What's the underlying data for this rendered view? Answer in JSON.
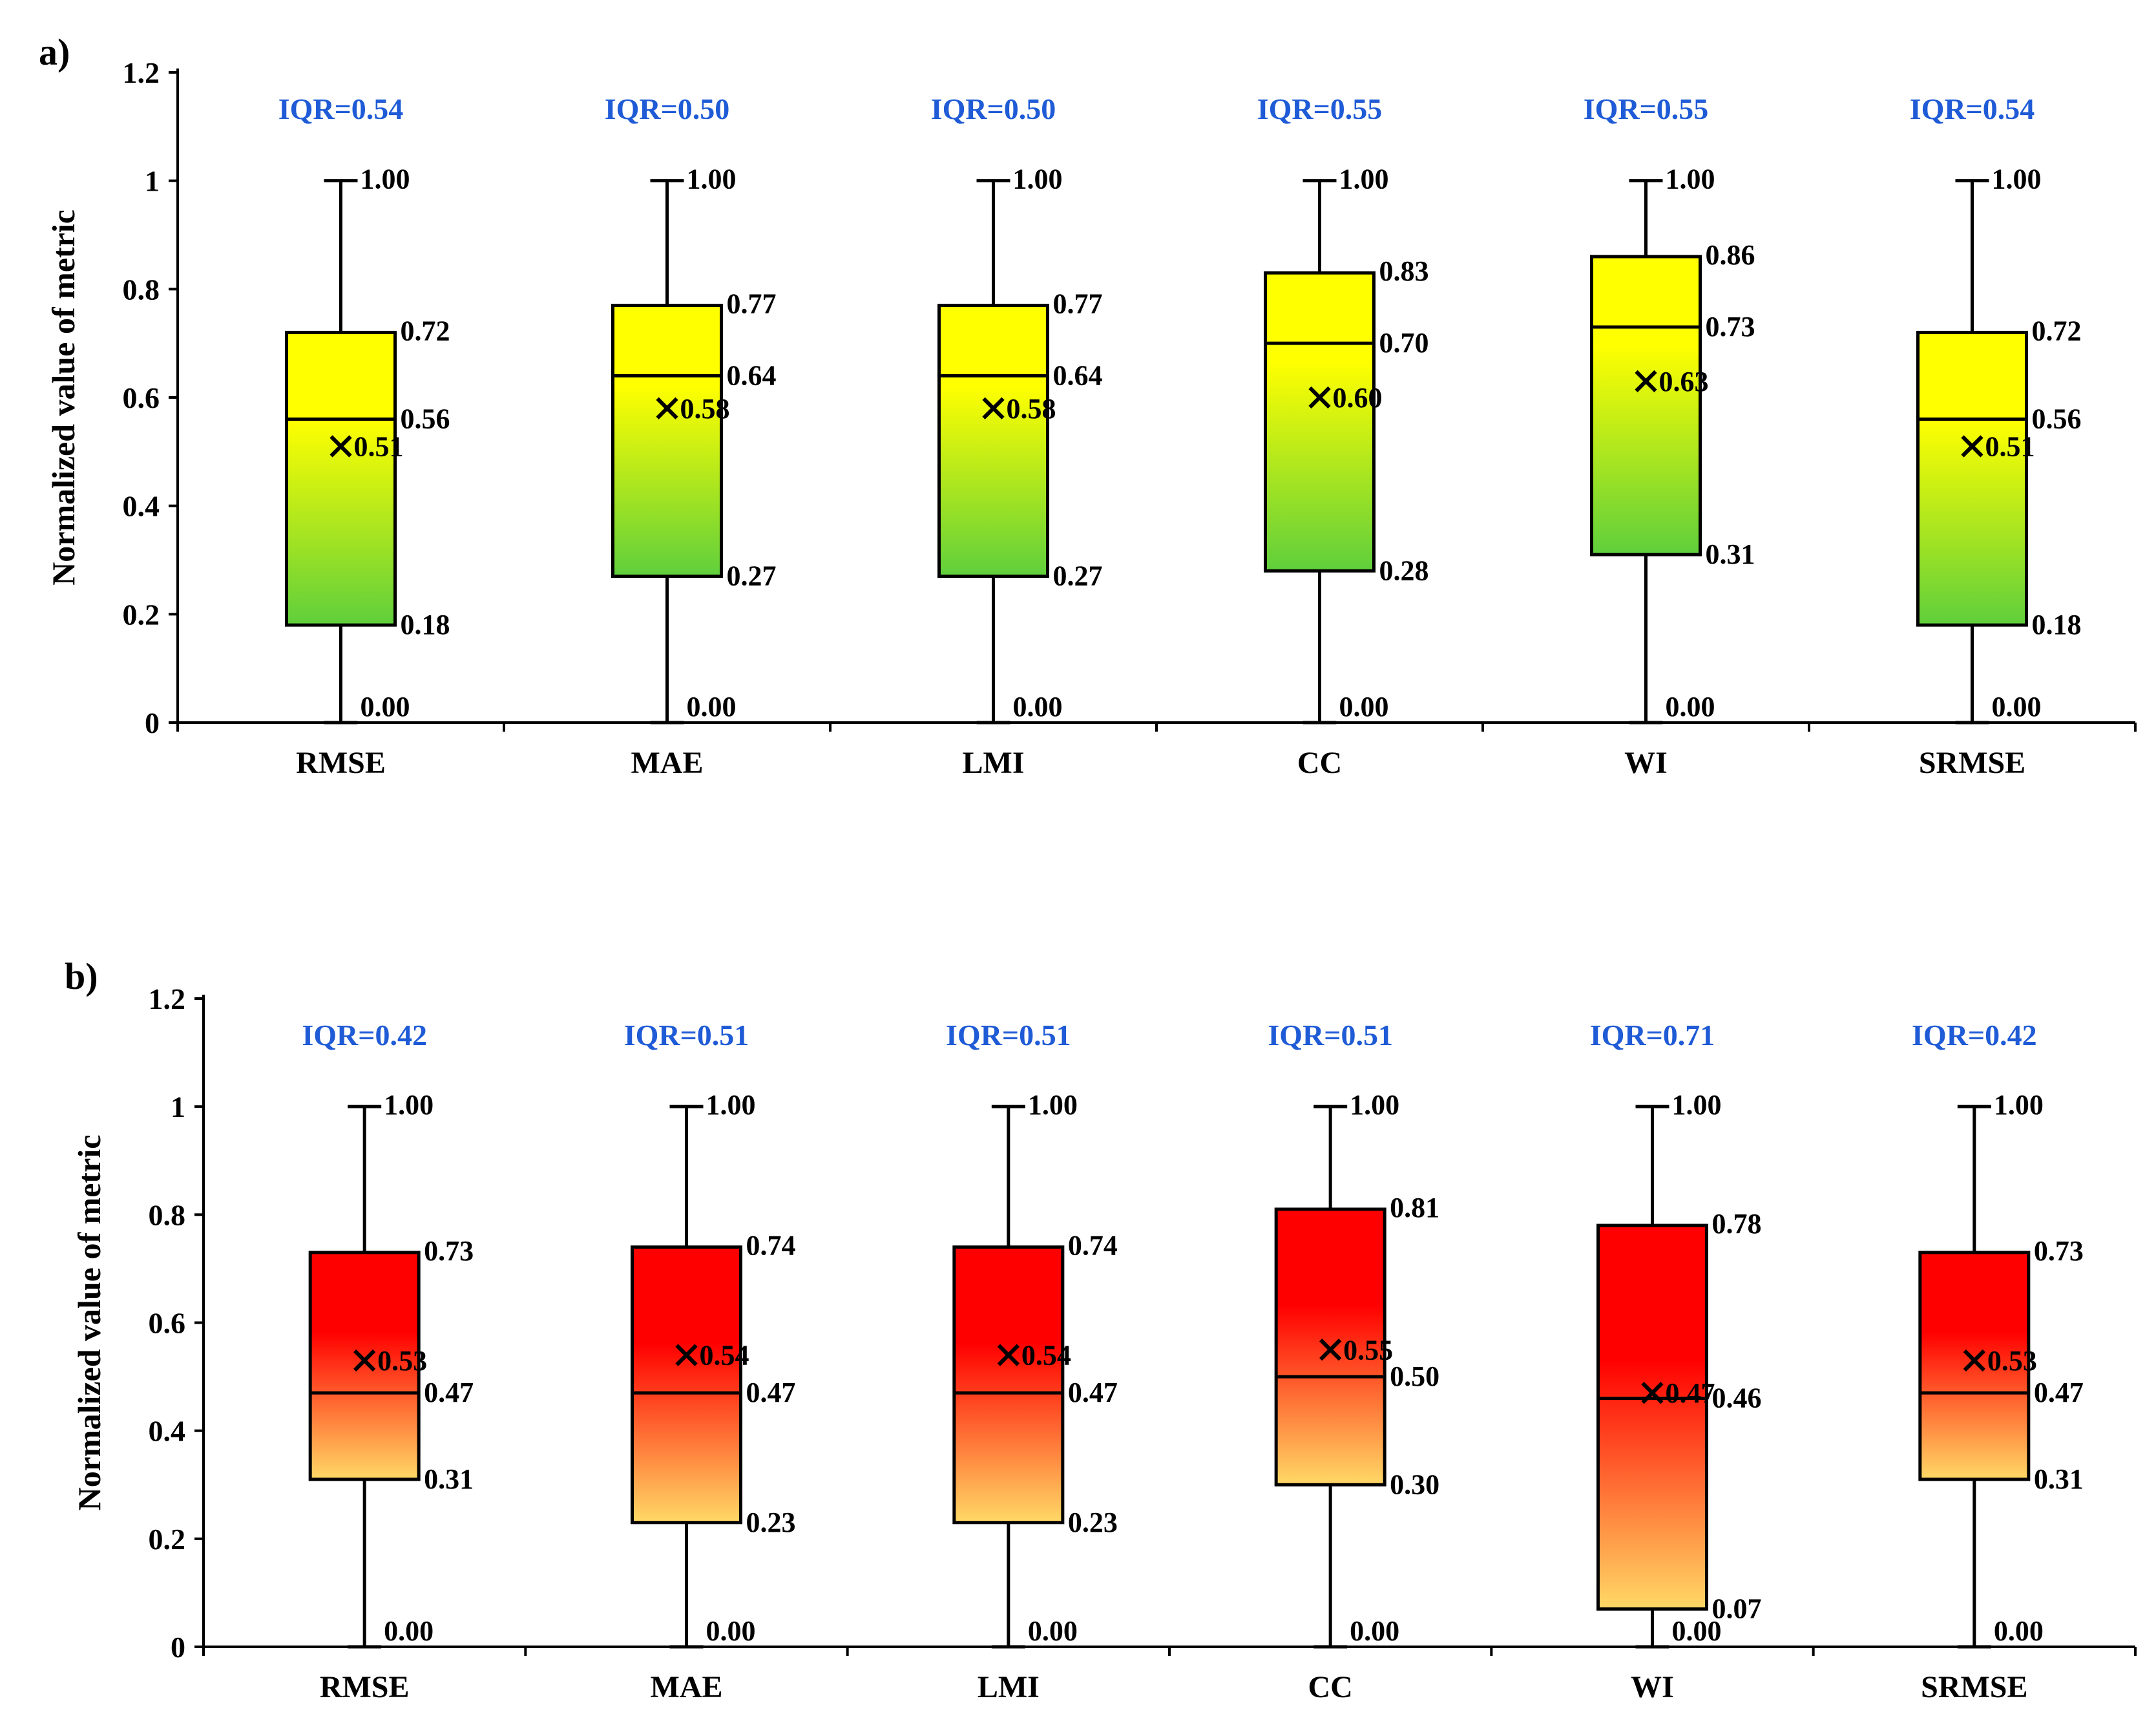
{
  "chart_data": [
    {
      "type": "box",
      "panel_label": "a)",
      "ylabel": "Normalized value of metric",
      "ylim": [
        0,
        1.2
      ],
      "yticks": [
        "0",
        "0.2",
        "0.4",
        "0.6",
        "0.8",
        "1",
        "1.2"
      ],
      "colors": {
        "top": "#ffff00",
        "bottom": "#5fcf3c"
      },
      "categories": [
        "RMSE",
        "MAE",
        "LMI",
        "CC",
        "WI",
        "SRMSE"
      ],
      "boxes": [
        {
          "name": "RMSE",
          "min": 0.0,
          "q1": 0.18,
          "median": 0.56,
          "mean": 0.51,
          "q3": 0.72,
          "max": 1.0,
          "labels": {
            "min": "0.00",
            "q1": "0.18",
            "median": "0.56",
            "mean": "0.51",
            "q3": "0.72",
            "max": "1.00"
          },
          "iqr": "IQR=0.54"
        },
        {
          "name": "MAE",
          "min": 0.0,
          "q1": 0.27,
          "median": 0.64,
          "mean": 0.58,
          "q3": 0.77,
          "max": 1.0,
          "labels": {
            "min": "0.00",
            "q1": "0.27",
            "median": "0.64",
            "mean": "0.58",
            "q3": "0.77",
            "max": "1.00"
          },
          "iqr": "IQR=0.50"
        },
        {
          "name": "LMI",
          "min": 0.0,
          "q1": 0.27,
          "median": 0.64,
          "mean": 0.58,
          "q3": 0.77,
          "max": 1.0,
          "labels": {
            "min": "0.00",
            "q1": "0.27",
            "median": "0.64",
            "mean": "0.58",
            "q3": "0.77",
            "max": "1.00"
          },
          "iqr": "IQR=0.50"
        },
        {
          "name": "CC",
          "min": 0.0,
          "q1": 0.28,
          "median": 0.7,
          "mean": 0.6,
          "q3": 0.83,
          "max": 1.0,
          "labels": {
            "min": "0.00",
            "q1": "0.28",
            "median": "0.70",
            "mean": "0.60",
            "q3": "0.83",
            "max": "1.00"
          },
          "iqr": "IQR=0.55"
        },
        {
          "name": "WI",
          "min": 0.0,
          "q1": 0.31,
          "median": 0.73,
          "mean": 0.63,
          "q3": 0.86,
          "max": 1.0,
          "labels": {
            "min": "0.00",
            "q1": "0.31",
            "median": "0.73",
            "mean": "0.63",
            "q3": "0.86",
            "max": "1.00"
          },
          "iqr": "IQR=0.55"
        },
        {
          "name": "SRMSE",
          "min": 0.0,
          "q1": 0.18,
          "median": 0.56,
          "mean": 0.51,
          "q3": 0.72,
          "max": 1.0,
          "labels": {
            "min": "0.00",
            "q1": "0.18",
            "median": "0.56",
            "mean": "0.51",
            "q3": "0.72",
            "max": "1.00"
          },
          "iqr": "IQR=0.54"
        }
      ]
    },
    {
      "type": "box",
      "panel_label": "b)",
      "ylabel": "Normalized value of metric",
      "ylim": [
        0,
        1.2
      ],
      "yticks": [
        "0",
        "0.2",
        "0.4",
        "0.6",
        "0.8",
        "1",
        "1.2"
      ],
      "colors": {
        "top": "#ff0000",
        "bottom": "#ffd966"
      },
      "categories": [
        "RMSE",
        "MAE",
        "LMI",
        "CC",
        "WI",
        "SRMSE"
      ],
      "boxes": [
        {
          "name": "RMSE",
          "min": 0.0,
          "q1": 0.31,
          "median": 0.47,
          "mean": 0.53,
          "q3": 0.73,
          "max": 1.0,
          "labels": {
            "min": "0.00",
            "q1": "0.31",
            "median": "0.47",
            "mean": "0.53",
            "q3": "0.73",
            "max": "1.00"
          },
          "iqr": "IQR=0.42"
        },
        {
          "name": "MAE",
          "min": 0.0,
          "q1": 0.23,
          "median": 0.47,
          "mean": 0.54,
          "q3": 0.74,
          "max": 1.0,
          "labels": {
            "min": "0.00",
            "q1": "0.23",
            "median": "0.47",
            "mean": "0.54",
            "q3": "0.74",
            "max": "1.00"
          },
          "iqr": "IQR=0.51"
        },
        {
          "name": "LMI",
          "min": 0.0,
          "q1": 0.23,
          "median": 0.47,
          "mean": 0.54,
          "q3": 0.74,
          "max": 1.0,
          "labels": {
            "min": "0.00",
            "q1": "0.23",
            "median": "0.47",
            "mean": "0.54",
            "q3": "0.74",
            "max": "1.00"
          },
          "iqr": "IQR=0.51"
        },
        {
          "name": "CC",
          "min": 0.0,
          "q1": 0.3,
          "median": 0.5,
          "mean": 0.55,
          "q3": 0.81,
          "max": 1.0,
          "labels": {
            "min": "0.00",
            "q1": "0.30",
            "median": "0.50",
            "mean": "0.55",
            "q3": "0.81",
            "max": "1.00"
          },
          "iqr": "IQR=0.51"
        },
        {
          "name": "WI",
          "min": 0.0,
          "q1": 0.07,
          "median": 0.46,
          "mean": 0.47,
          "q3": 0.78,
          "max": 1.0,
          "labels": {
            "min": "0.00",
            "q1": "0.07",
            "median": "0.46",
            "mean": "0.47",
            "q3": "0.78",
            "max": "1.00"
          },
          "iqr": "IQR=0.71"
        },
        {
          "name": "SRMSE",
          "min": 0.0,
          "q1": 0.31,
          "median": 0.47,
          "mean": 0.53,
          "q3": 0.73,
          "max": 1.0,
          "labels": {
            "min": "0.00",
            "q1": "0.31",
            "median": "0.47",
            "mean": "0.53",
            "q3": "0.73",
            "max": "1.00"
          },
          "iqr": "IQR=0.42"
        }
      ]
    }
  ]
}
